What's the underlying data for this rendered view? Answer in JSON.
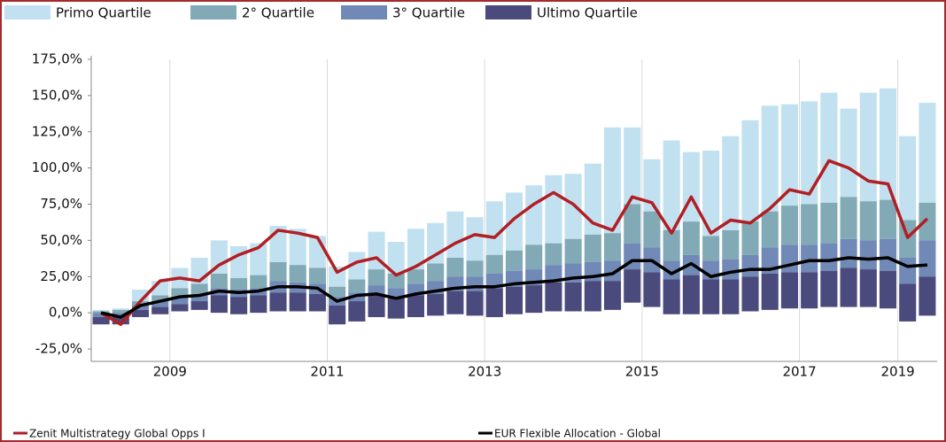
{
  "chart_data": {
    "type": "quartile-bars",
    "categories": [
      null,
      null,
      null,
      null,
      "2009",
      null,
      null,
      null,
      null,
      null,
      null,
      null,
      "2011",
      null,
      null,
      null,
      null,
      null,
      null,
      null,
      "2013",
      null,
      null,
      null,
      null,
      null,
      null,
      null,
      "2015",
      null,
      null,
      null,
      null,
      null,
      null,
      null,
      "2017",
      null,
      null,
      null,
      null,
      "2019",
      null
    ],
    "series": [
      {
        "name": "Primo Quartile",
        "color": "#c2e1f0",
        "values": [
          2,
          3,
          16,
          22,
          31,
          38,
          50,
          46,
          48,
          60,
          58,
          53,
          32,
          42,
          56,
          49,
          58,
          62,
          70,
          66,
          77,
          83,
          88,
          95,
          96,
          103,
          128,
          128,
          106,
          119,
          111,
          112,
          122,
          133,
          143,
          144,
          146,
          152,
          141,
          152,
          155,
          122,
          145
        ]
      },
      {
        "name": "2° Quartile",
        "color": "#82aab6",
        "values": [
          1,
          2,
          8,
          12,
          17,
          20,
          27,
          24,
          26,
          35,
          33,
          31,
          18,
          23,
          30,
          27,
          30,
          34,
          38,
          36,
          40,
          43,
          47,
          48,
          51,
          54,
          55,
          75,
          70,
          57,
          63,
          53,
          57,
          63,
          70,
          74,
          75,
          76,
          80,
          77,
          78,
          64,
          76
        ]
      },
      {
        "name": "3° Quartile",
        "color": "#7089b6",
        "values": [
          0,
          0,
          5,
          8,
          11,
          13,
          17,
          16,
          17,
          22,
          21,
          20,
          11,
          14,
          19,
          17,
          20,
          22,
          25,
          25,
          27,
          29,
          30,
          33,
          34,
          35,
          36,
          48,
          45,
          36,
          40,
          36,
          37,
          40,
          45,
          47,
          47,
          48,
          51,
          50,
          51,
          38,
          50
        ]
      },
      {
        "name": "Ultimo Quartile",
        "color": "#4b4a7d",
        "values": [
          -3,
          -2,
          2,
          4,
          6,
          8,
          12,
          11,
          12,
          14,
          14,
          13,
          5,
          8,
          12,
          10,
          12,
          13,
          15,
          15,
          17,
          18,
          19,
          21,
          21,
          22,
          22,
          30,
          28,
          23,
          26,
          23,
          23,
          25,
          27,
          28,
          28,
          29,
          31,
          30,
          29,
          20,
          25
        ],
        "low": [
          -8,
          -8,
          -3,
          -1,
          1,
          2,
          0,
          -1,
          0,
          1,
          1,
          1,
          -8,
          -6,
          -3,
          -4,
          -3,
          -2,
          -1,
          -2,
          -3,
          -1,
          0,
          1,
          1,
          1,
          2,
          7,
          4,
          -1,
          -1,
          -1,
          -1,
          1,
          2,
          3,
          3,
          4,
          4,
          4,
          3,
          -6,
          -2
        ]
      }
    ],
    "lines": [
      {
        "name": "Zenit Multistrategy Global Opps I",
        "color": "#b01f24",
        "values": [
          0,
          -8,
          8,
          22,
          24,
          22,
          33,
          40,
          45,
          57,
          55,
          52,
          28,
          35,
          38,
          26,
          32,
          40,
          48,
          54,
          52,
          65,
          75,
          83,
          75,
          62,
          57,
          80,
          76,
          55,
          80,
          55,
          64,
          62,
          72,
          85,
          82,
          105,
          100,
          91,
          89,
          52,
          65
        ]
      },
      {
        "name": "EUR Flexible Allocation - Global",
        "color": "#000000",
        "values": [
          0,
          -3,
          5,
          8,
          11,
          12,
          15,
          14,
          15,
          18,
          18,
          17,
          8,
          12,
          13,
          10,
          13,
          15,
          17,
          18,
          18,
          20,
          21,
          22,
          24,
          25,
          27,
          36,
          36,
          27,
          34,
          25,
          28,
          30,
          30,
          33,
          36,
          36,
          38,
          37,
          38,
          32,
          33
        ]
      }
    ],
    "ylim": [
      -25,
      175
    ],
    "yticks": [
      {
        "value": -25,
        "label": "-25,0%"
      },
      {
        "value": 0,
        "label": "0,0%"
      },
      {
        "value": 25,
        "label": "25,0%"
      },
      {
        "value": 50,
        "label": "50,0%"
      },
      {
        "value": 75,
        "label": "75,0%"
      },
      {
        "value": 100,
        "label": "100,0%"
      },
      {
        "value": 125,
        "label": "125,0%"
      },
      {
        "value": 150,
        "label": "150,0%"
      },
      {
        "value": 175,
        "label": "175,0%"
      }
    ]
  }
}
